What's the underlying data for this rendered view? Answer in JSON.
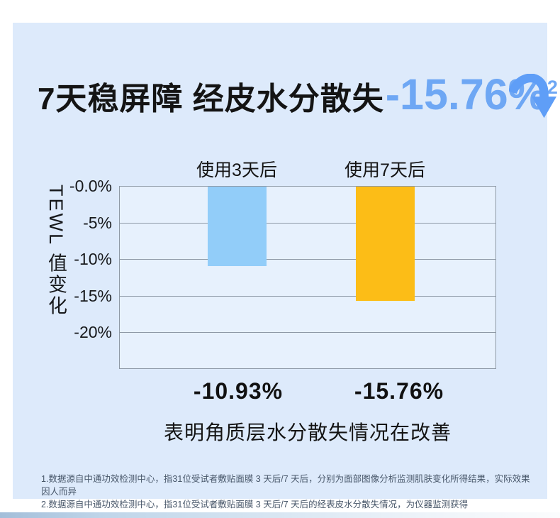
{
  "title": {
    "black_text": "7天稳屏障 经皮水分散失",
    "highlight_text": "-15.76%",
    "superscript": "2"
  },
  "colors": {
    "card_background": "#ddeafb",
    "plot_background": "#e7f1fd",
    "grid_line": "#8e99a6",
    "accent_blue": "#6ea7f4",
    "bar_blue": "#92cdf9",
    "bar_yellow": "#fcbd17"
  },
  "icons": {
    "down_arrow": "curved-down-arrow"
  },
  "chart_data": {
    "type": "bar",
    "title": "",
    "categories": [
      "使用3天后",
      "使用7天后"
    ],
    "values": [
      -10.93,
      -15.76
    ],
    "value_labels": [
      "-10.93%",
      "-15.76%"
    ],
    "bar_colors": [
      "#92cdf9",
      "#fcbd17"
    ],
    "ylabel": "TEWL 值变化",
    "xlabel": "",
    "yticks": [
      "-0.0%",
      "-5%",
      "-10%",
      "-15%",
      "-20%"
    ],
    "ylim": [
      0,
      -25
    ],
    "grid": true,
    "bars_hang_from_zero_line": true,
    "legend": "none"
  },
  "caption": "表明角质层水分散失情况在改善",
  "footnotes": [
    "1.数据源自中通功效检测中心，指31位受试者敷贴面膜 3 天后/7 天后，分别为面部图像分析监测肌肤变化所得结果，实际效果因人而异",
    "2.数据源自中通功效检测中心，指31位受试者敷贴面膜 3 天后/7 天后的经表皮水分散失情况，为仪器监测获得"
  ]
}
